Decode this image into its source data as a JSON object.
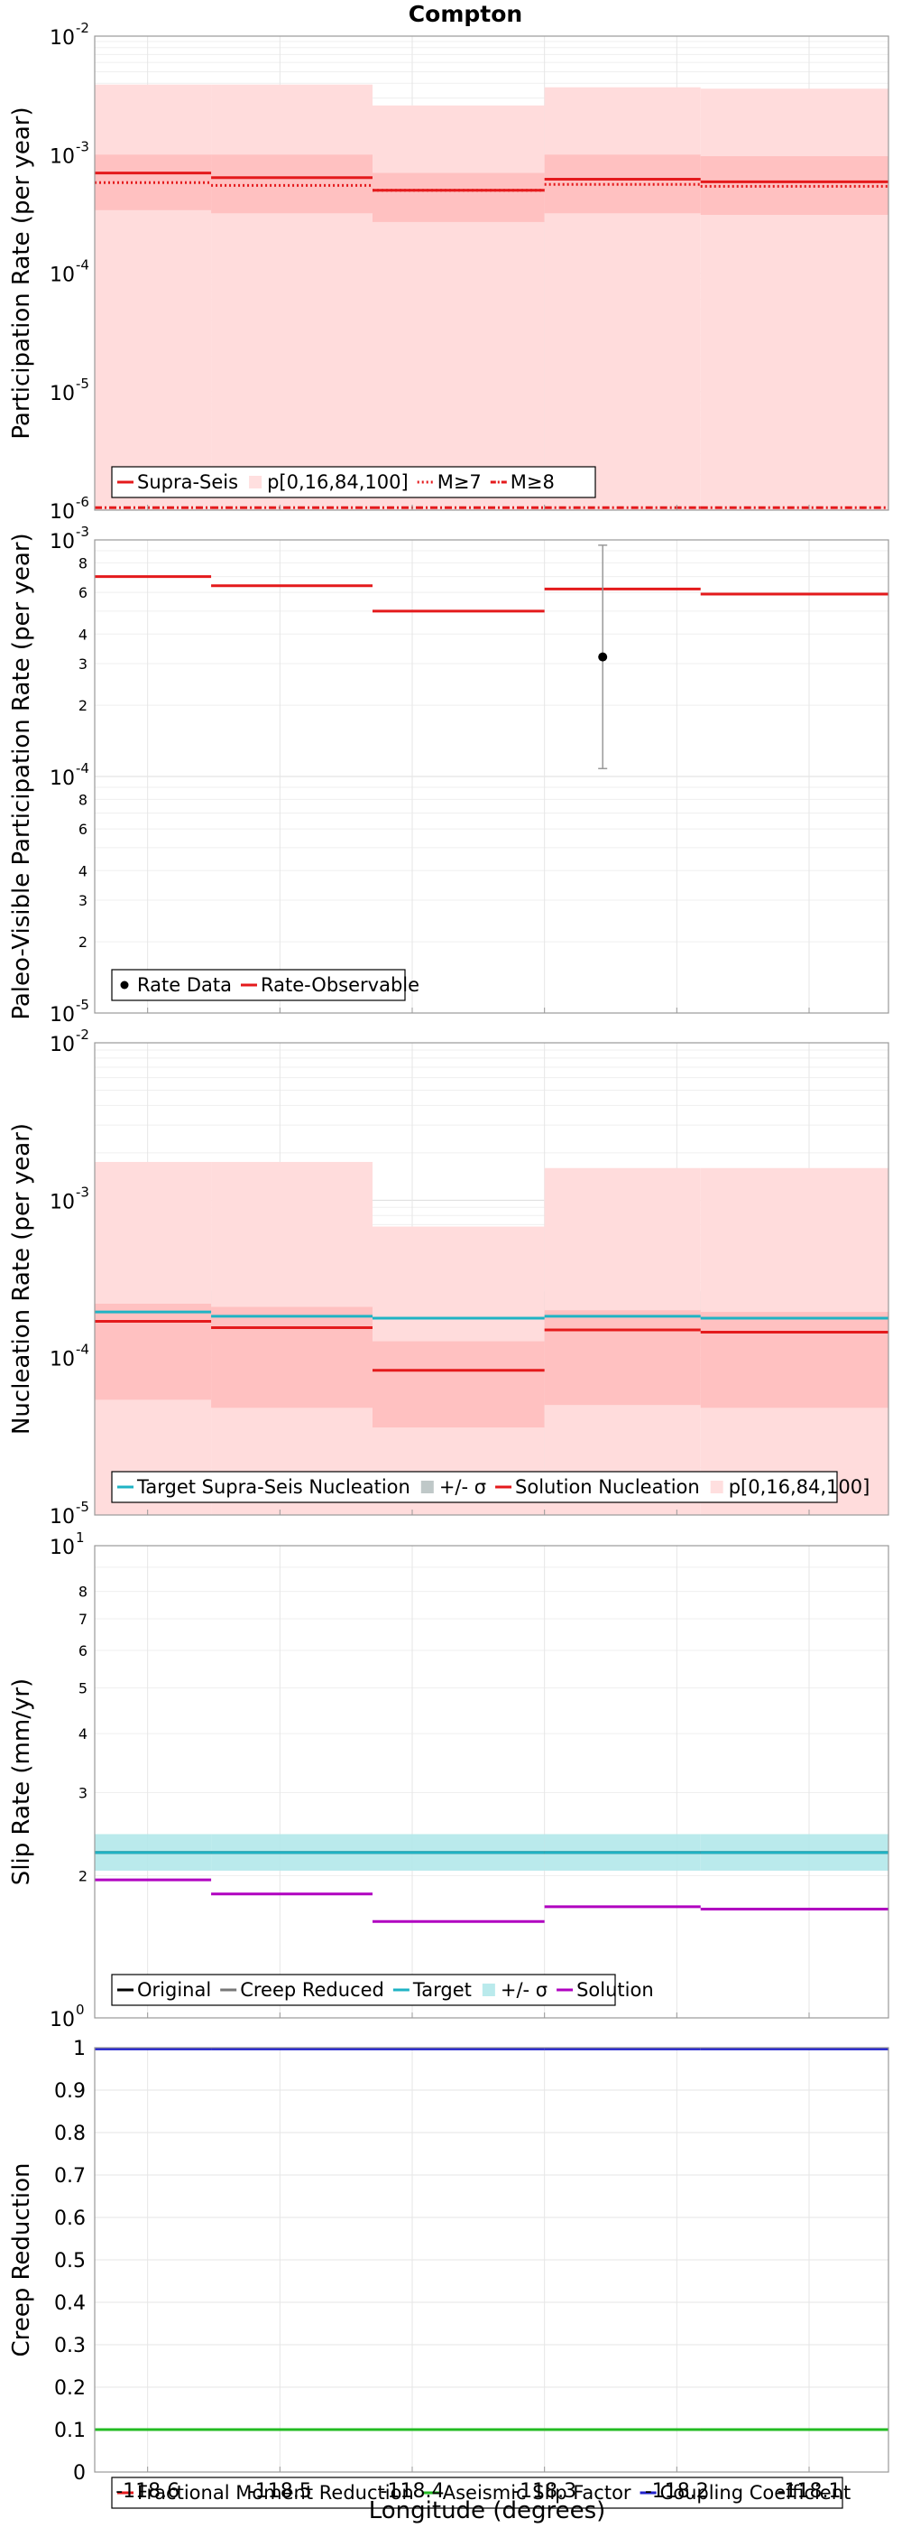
{
  "figure": {
    "title": "Compton",
    "xlabel": "Longitude (degrees)"
  },
  "chart_data": [
    {
      "type": "line",
      "panel": "participation",
      "yscale": "log",
      "ylabel": "Participation Rate (per year)",
      "xlim": [
        -118.64,
        -118.04
      ],
      "ylim": [
        1e-06,
        0.01
      ],
      "x_ticks": [
        -118.6,
        -118.5,
        -118.4,
        -118.3,
        -118.2,
        -118.1
      ],
      "x_tick_labels": [
        "-118.6",
        "-118.5",
        "-118.4",
        "-118.3",
        "-118.2",
        "-118.1"
      ],
      "segment_x_edges": [
        -118.64,
        -118.552,
        -118.43,
        -118.3,
        -118.182,
        -118.04
      ],
      "series": [
        {
          "name": "Supra-Seis",
          "color": "#e41a1c",
          "style": "solid",
          "values": [
            0.0007,
            0.00064,
            0.0005,
            0.00062,
            0.00059
          ]
        },
        {
          "name": "p[0,16,84,100]",
          "color": "#ffb3b3",
          "style": "band",
          "p0": [
            1e-06,
            1e-06,
            1e-06,
            1e-06,
            1e-06
          ],
          "p16": [
            0.00034,
            0.00032,
            0.00027,
            0.00032,
            0.00031
          ],
          "p84": [
            0.001,
            0.001,
            0.0007,
            0.001,
            0.00097
          ],
          "p100": [
            0.0039,
            0.0039,
            0.0026,
            0.0037,
            0.0036
          ]
        },
        {
          "name": "M≥7",
          "color": "#e41a1c",
          "style": "dotted",
          "values": [
            0.00058,
            0.00055,
            0.0005,
            0.00056,
            0.00054
          ]
        },
        {
          "name": "M≥8",
          "color": "#e41a1c",
          "style": "dashdot",
          "values": [
            1.05e-06,
            1.05e-06,
            1.05e-06,
            1.05e-06,
            1.05e-06
          ]
        }
      ]
    },
    {
      "type": "line",
      "panel": "paleo",
      "yscale": "log",
      "ylabel": "Paleo-Visible Participation Rate (per year)",
      "ylim": [
        1e-05,
        0.001
      ],
      "minor_tick_labels": [
        "2",
        "3",
        "4",
        "6",
        "8"
      ],
      "series": [
        {
          "name": "Rate Data",
          "color": "#000000",
          "style": "point",
          "x": -118.256,
          "y": 0.00032,
          "ylow": 0.000108,
          "yhigh": 0.00095
        },
        {
          "name": "Rate-Observable",
          "color": "#e41a1c",
          "style": "solid",
          "values": [
            0.0007,
            0.00064,
            0.0005,
            0.00062,
            0.00059
          ]
        }
      ]
    },
    {
      "type": "line",
      "panel": "nucleation",
      "yscale": "log",
      "ylabel": "Nucleation Rate (per year)",
      "ylim": [
        1e-05,
        0.01
      ],
      "series": [
        {
          "name": "Target Supra-Seis Nucleation",
          "color": "#1fb3c4",
          "style": "solid",
          "values": [
            0.000195,
            0.000183,
            0.000178,
            0.000183,
            0.000178
          ]
        },
        {
          "name": "+/- σ",
          "color": "#b8c2c2",
          "style": "band",
          "low": [
            0.000128,
            0.000122,
            0.000118,
            0.000122,
            0.000118
          ],
          "high": [
            0.0003,
            0.000265,
            0.000262,
            0.000265,
            0.000262
          ]
        },
        {
          "name": "Solution Nucleation",
          "color": "#e41a1c",
          "style": "solid",
          "values": [
            0.00017,
            0.000155,
            8.3e-05,
            0.00015,
            0.000145
          ]
        },
        {
          "name": "p[0,16,84,100]",
          "color": "#ffb3b3",
          "style": "band",
          "p0": [
            1e-05,
            1e-05,
            1e-05,
            1e-05,
            1e-05
          ],
          "p16": [
            5.4e-05,
            4.8e-05,
            3.6e-05,
            5e-05,
            4.8e-05
          ],
          "p84": [
            0.00022,
            0.00021,
            0.000127,
            0.0002,
            0.000195
          ],
          "p100": [
            0.00175,
            0.00175,
            0.00068,
            0.0016,
            0.0016
          ]
        }
      ]
    },
    {
      "type": "line",
      "panel": "slip",
      "yscale": "log",
      "ylabel": "Slip Rate (mm/yr)",
      "ylim": [
        1,
        10
      ],
      "minor_tick_labels": [
        "2",
        "3",
        "4",
        "5",
        "6",
        "7",
        "8"
      ],
      "series": [
        {
          "name": "Original",
          "color": "#000000",
          "style": "solid",
          "values": [
            2.24,
            2.24,
            2.24,
            2.24,
            2.24
          ]
        },
        {
          "name": "Creep Reduced",
          "color": "#777777",
          "style": "solid",
          "values": [
            2.24,
            2.24,
            2.24,
            2.24,
            2.24
          ]
        },
        {
          "name": "Target",
          "color": "#1fb3c4",
          "style": "solid",
          "values": [
            2.24,
            2.24,
            2.24,
            2.24,
            2.24
          ]
        },
        {
          "name": "+/- σ",
          "color": "#b3e8ea",
          "style": "band",
          "low": [
            2.05,
            2.05,
            2.05,
            2.05,
            2.05
          ],
          "high": [
            2.45,
            2.45,
            2.45,
            2.45,
            2.45
          ]
        },
        {
          "name": "Solution",
          "color": "#b000c0",
          "style": "solid",
          "values": [
            1.96,
            1.83,
            1.6,
            1.72,
            1.7
          ]
        }
      ]
    },
    {
      "type": "line",
      "panel": "creep",
      "yscale": "linear",
      "ylabel": "Creep Reduction",
      "ylim": [
        0,
        1
      ],
      "series": [
        {
          "name": "Fractional Moment Reduction",
          "color": "#e41a1c",
          "style": "solid",
          "values": [
            0.1,
            0.1,
            0.1,
            0.1,
            0.1
          ]
        },
        {
          "name": "Aseismic Slip Factor",
          "color": "#22bb22",
          "style": "solid",
          "values": [
            0.1,
            0.1,
            0.1,
            0.1,
            0.1
          ]
        },
        {
          "name": "Coupling Coefficient",
          "color": "#2222cc",
          "style": "solid",
          "values": [
            0.997,
            0.997,
            0.997,
            0.997,
            0.997
          ]
        }
      ]
    }
  ]
}
